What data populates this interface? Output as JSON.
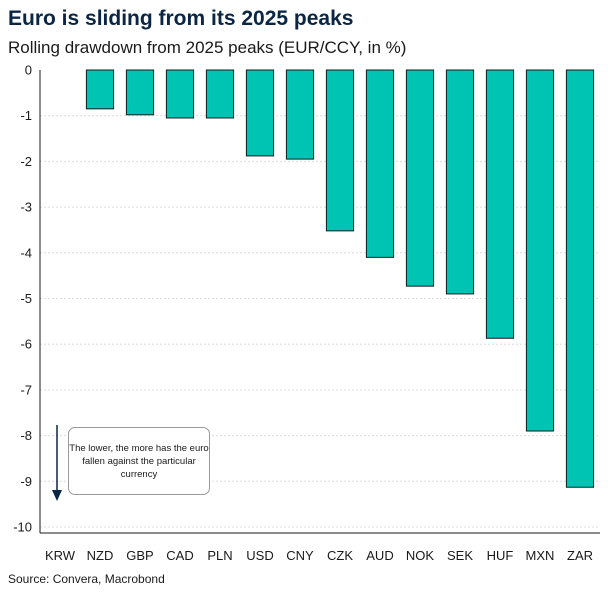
{
  "title": "Euro is sliding from its 2025 peaks",
  "subtitle": "Rolling drawdown from 2025 peaks (EUR/CCY, in %)",
  "source": "Source: Convera, Macrobond",
  "annotation": "The lower, the more has the euro fallen against the particular currency",
  "colors": {
    "bar": "#00c4b3",
    "bar_edge": "#1a1a1a",
    "title": "#0b2545",
    "grid": "#dcdcdc"
  },
  "chart_data": {
    "type": "bar",
    "title": "Euro is sliding from its 2025 peaks",
    "subtitle": "Rolling drawdown from 2025 peaks (EUR/CCY, in %)",
    "categories": [
      "KRW",
      "NZD",
      "GBP",
      "CAD",
      "PLN",
      "USD",
      "CNY",
      "CZK",
      "AUD",
      "NOK",
      "SEK",
      "HUF",
      "MXN",
      "ZAR"
    ],
    "values": [
      0,
      -0.85,
      -0.98,
      -1.05,
      -1.05,
      -1.88,
      -1.95,
      -3.52,
      -4.1,
      -4.73,
      -4.9,
      -5.87,
      -7.9,
      -9.13
    ],
    "ylim": [
      -10,
      0
    ],
    "yticks": [
      0,
      -1,
      -2,
      -3,
      -4,
      -5,
      -6,
      -7,
      -8,
      -9,
      -10
    ],
    "grid": true,
    "xlabel": "",
    "ylabel": ""
  }
}
